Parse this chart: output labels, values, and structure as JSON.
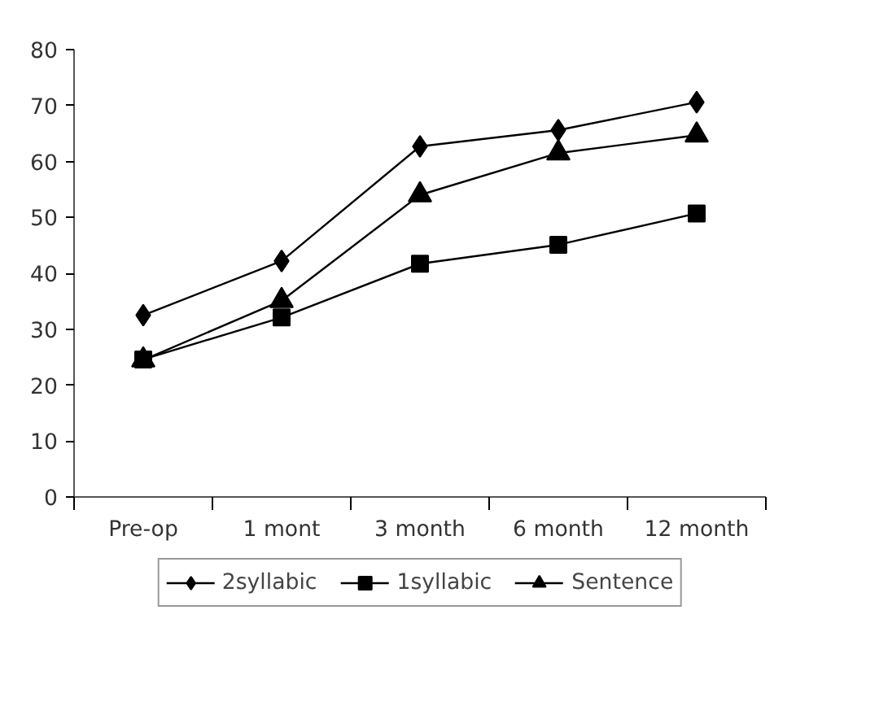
{
  "chart_data": {
    "type": "line",
    "categories": [
      "Pre-op",
      "1 mont",
      "3 month",
      "6 month",
      "12 month"
    ],
    "series": [
      {
        "name": "2syllabic",
        "color": "#000000",
        "marker": "diamond",
        "values": [
          32.5,
          42.2,
          62.7,
          65.6,
          70.6
        ]
      },
      {
        "name": "1syllabic",
        "color": "#000000",
        "marker": "square",
        "values": [
          24.6,
          32.1,
          41.7,
          45.1,
          50.7
        ]
      },
      {
        "name": "Sentence",
        "color": "#000000",
        "marker": "triangle",
        "values": [
          24.5,
          35.1,
          54.0,
          61.5,
          64.7
        ]
      }
    ],
    "ylim": [
      0,
      80
    ],
    "yticks": [
      0,
      10,
      20,
      30,
      40,
      50,
      60,
      70,
      80
    ],
    "grid": false,
    "legend": "bottom",
    "line_style": "solid"
  }
}
